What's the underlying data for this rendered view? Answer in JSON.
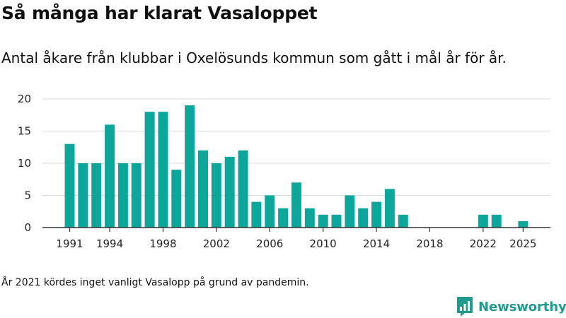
{
  "title": "Så många har klarat Vasaloppet",
  "subtitle": "Antal åkare från klubbar i Oxelösunds kommun som gått i mål år för år.",
  "footnote": "År 2021 kördes inget vanligt Vasalopp på grund av pandemin.",
  "brand": {
    "name": "Newsworthy",
    "logo_icon": "newsworthy-bar-chart-logo-icon",
    "color": "#1f9c8f"
  },
  "chart_data": {
    "type": "bar",
    "x": [
      1991,
      1992,
      1993,
      1994,
      1995,
      1996,
      1997,
      1998,
      1999,
      2000,
      2001,
      2002,
      2003,
      2004,
      2005,
      2006,
      2007,
      2008,
      2009,
      2010,
      2011,
      2012,
      2013,
      2014,
      2015,
      2016,
      2017,
      2018,
      2019,
      2020,
      2021,
      2022,
      2023,
      2024,
      2025
    ],
    "values": [
      13,
      10,
      10,
      16,
      10,
      10,
      18,
      18,
      9,
      19,
      12,
      10,
      11,
      12,
      4,
      5,
      3,
      7,
      3,
      2,
      2,
      5,
      3,
      4,
      6,
      2,
      0,
      0,
      0,
      0,
      null,
      2,
      2,
      0,
      1
    ],
    "x_tick_labels": [
      "1991",
      "1994",
      "1998",
      "2002",
      "2006",
      "2010",
      "2014",
      "2018",
      "2022",
      "2025"
    ],
    "y_tick_labels": [
      "0",
      "5",
      "10",
      "15",
      "20"
    ],
    "ylim": [
      0,
      20
    ],
    "grid": true,
    "bar_color": "#0ca69b",
    "xlabel": "",
    "ylabel": ""
  }
}
